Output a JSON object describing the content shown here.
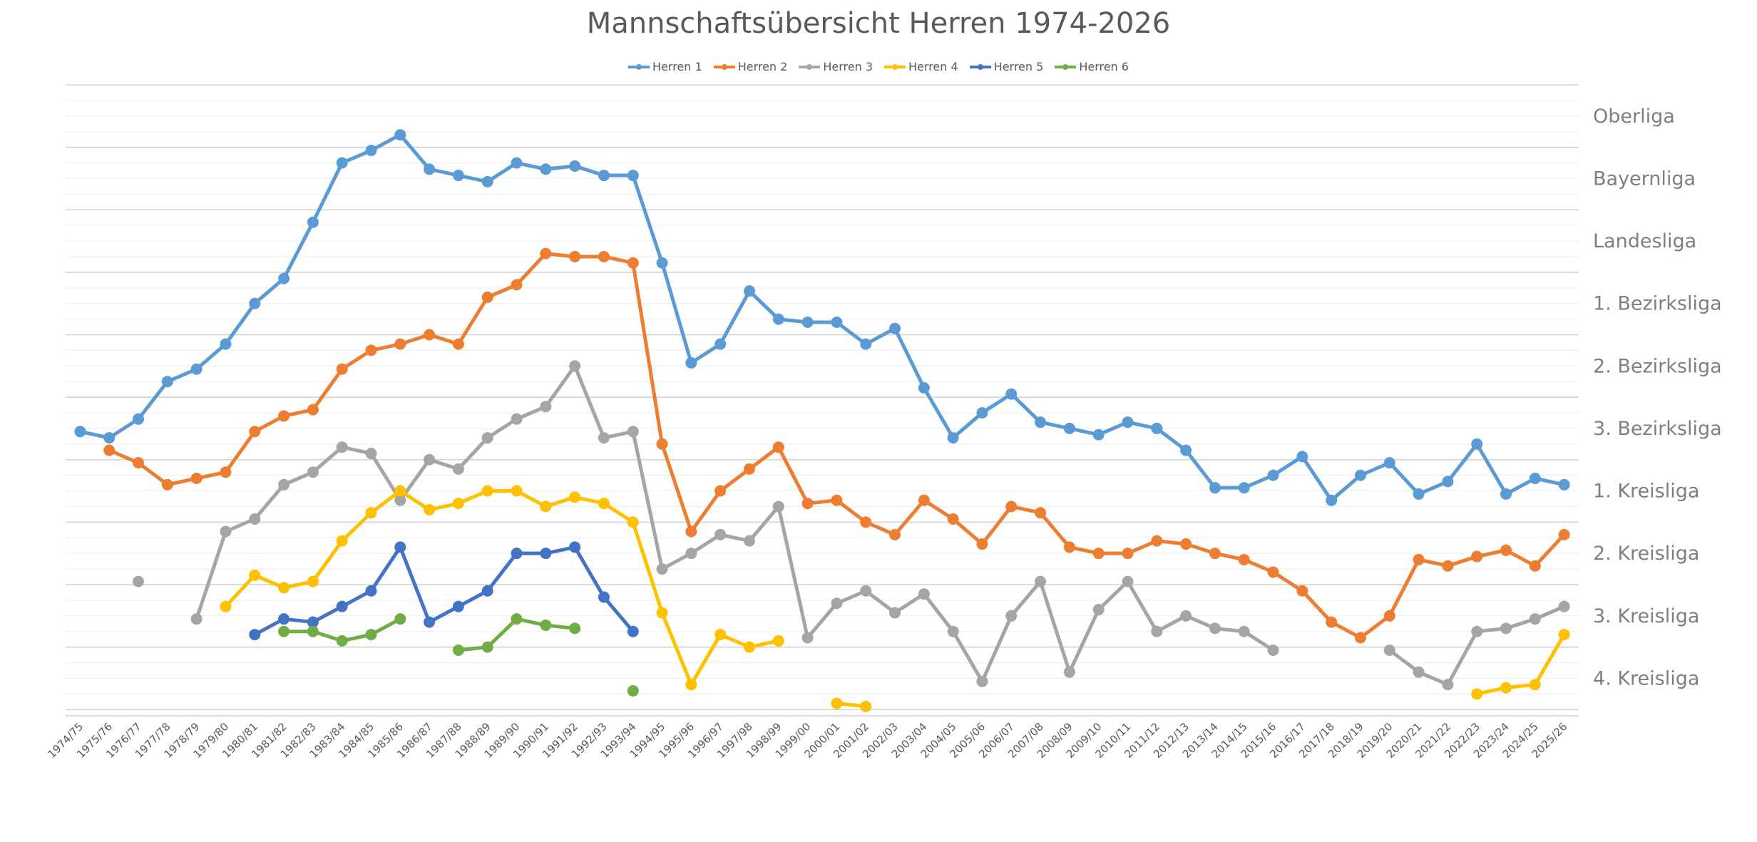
{
  "chart_data": {
    "type": "line",
    "title": "Mannschaftsübersicht Herren 1974-2026",
    "xlabel": "",
    "ylabel": "",
    "legend_position": "top",
    "grid": true,
    "categories": [
      "1974/75",
      "1975/76",
      "1976/77",
      "1977/78",
      "1978/79",
      "1979/80",
      "1980/81",
      "1981/82",
      "1982/83",
      "1983/84",
      "1984/85",
      "1985/86",
      "1986/87",
      "1987/88",
      "1988/89",
      "1989/90",
      "1990/91",
      "1991/92",
      "1992/93",
      "1993/94",
      "1994/95",
      "1995/96",
      "1996/97",
      "1997/98",
      "1998/99",
      "1999/00",
      "2000/01",
      "2001/02",
      "2002/03",
      "2003/04",
      "2004/05",
      "2005/06",
      "2006/07",
      "2007/08",
      "2008/09",
      "2009/10",
      "2010/11",
      "2011/12",
      "2012/13",
      "2013/14",
      "2014/15",
      "2015/16",
      "2016/17",
      "2017/18",
      "2018/19",
      "2019/20",
      "2020/21",
      "2021/22",
      "2022/23",
      "2023/24",
      "2024/25",
      "2025/26"
    ],
    "y_levels": [
      "Oberliga",
      "Bayernliga",
      "Landesliga",
      "1. Bezirksliga",
      "2. Bezirksliga",
      "3. Bezirksliga",
      "1. Kreisliga",
      "2. Kreisliga",
      "3. Kreisliga",
      "4. Kreisliga"
    ],
    "y_note": "value = position in the league table scale; 1 = top of Oberliga band, each league band spans 10 units; 0 = top edge",
    "ylim": [
      0,
      101
    ],
    "series": [
      {
        "name": "Herren 1",
        "color": "#5b9bd5",
        "values": [
          55.5,
          56.5,
          53.5,
          47.5,
          45.5,
          41.5,
          35,
          31,
          22,
          12.5,
          10.5,
          8,
          13.5,
          14.5,
          15.5,
          12.5,
          13.5,
          13,
          14.5,
          14.5,
          28.5,
          44.5,
          41.5,
          33,
          37.5,
          38,
          38,
          41.5,
          39,
          48.5,
          56.5,
          52.5,
          49.5,
          54,
          55,
          56,
          54,
          55,
          58.5,
          64.5,
          64.5,
          62.5,
          59.5,
          66.5,
          62.5,
          60.5,
          65.5,
          63.5,
          57.5,
          65.5,
          63,
          64
        ]
      },
      {
        "name": "Herren 2",
        "color": "#ed7d31",
        "values": [
          null,
          58.5,
          60.5,
          64,
          63,
          62,
          55.5,
          53,
          52,
          45.5,
          42.5,
          41.5,
          40,
          41.5,
          34,
          32,
          27,
          27.5,
          27.5,
          28.5,
          57.5,
          71.5,
          65,
          61.5,
          58,
          67,
          66.5,
          70,
          72,
          66.5,
          69.5,
          73.5,
          67.5,
          68.5,
          74,
          75,
          75,
          73,
          73.5,
          75,
          76,
          78,
          81,
          86,
          88.5,
          85,
          76,
          77,
          75.5,
          74.5,
          77,
          72
        ]
      },
      {
        "name": "Herren 3",
        "color": "#a5a5a5",
        "values": [
          null,
          null,
          79.5,
          null,
          85.5,
          71.5,
          69.5,
          64,
          62,
          58,
          59,
          66.5,
          60,
          61.5,
          56.5,
          53.5,
          51.5,
          45,
          56.5,
          55.5,
          77.5,
          75,
          72,
          73,
          67.5,
          88.5,
          83,
          81,
          84.5,
          81.5,
          87.5,
          95.5,
          85,
          79.5,
          94,
          84,
          79.5,
          87.5,
          85,
          87,
          87.5,
          90.5,
          null,
          null,
          null,
          90.5,
          94,
          96,
          87.5,
          87,
          85.5,
          83.5
        ]
      },
      {
        "name": "Herren 4",
        "color": "#ffc000",
        "values": [
          null,
          null,
          null,
          null,
          null,
          83.5,
          78.5,
          80.5,
          79.5,
          73,
          68.5,
          65,
          68,
          67,
          65,
          65,
          67.5,
          66,
          67,
          70,
          84.5,
          96,
          88,
          90,
          89,
          null,
          99,
          99.5,
          null,
          null,
          null,
          null,
          null,
          null,
          null,
          null,
          null,
          null,
          null,
          null,
          null,
          null,
          null,
          null,
          null,
          null,
          null,
          null,
          97.5,
          96.5,
          96,
          88
        ]
      },
      {
        "name": "Herren 5",
        "color": "#4472c4",
        "values": [
          null,
          null,
          null,
          null,
          null,
          null,
          88,
          85.5,
          86,
          83.5,
          81,
          74,
          86,
          83.5,
          81,
          75,
          75,
          74,
          82,
          87.5,
          null,
          null,
          null,
          null,
          null,
          null,
          null,
          null,
          null,
          null,
          null,
          null,
          null,
          null,
          null,
          null,
          null,
          null,
          null,
          null,
          null,
          null,
          null,
          null,
          null,
          null,
          null,
          null,
          null,
          null,
          null,
          null
        ]
      },
      {
        "name": "Herren 6",
        "color": "#70ad47",
        "values": [
          null,
          null,
          null,
          null,
          null,
          null,
          null,
          87.5,
          87.5,
          89,
          88,
          85.5,
          null,
          90.5,
          90,
          85.5,
          86.5,
          87,
          null,
          97,
          null,
          null,
          null,
          null,
          null,
          null,
          null,
          null,
          null,
          null,
          null,
          null,
          null,
          null,
          null,
          null,
          null,
          null,
          null,
          null,
          null,
          null,
          null,
          null,
          null,
          null,
          null,
          null,
          null,
          null,
          null,
          null
        ]
      }
    ]
  }
}
